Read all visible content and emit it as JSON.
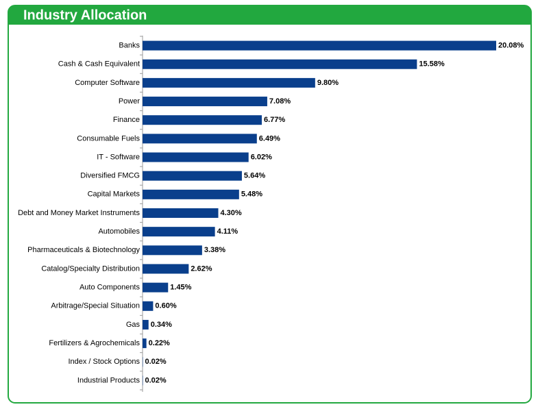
{
  "chart_data": {
    "type": "bar",
    "orientation": "horizontal",
    "title": "Industry Allocation",
    "categories": [
      "Banks",
      "Cash & Cash Equivalent",
      "Computer Software",
      "Power",
      "Finance",
      "Consumable Fuels",
      "IT - Software",
      "Diversified FMCG",
      "Capital Markets",
      "Debt and Money Market Instruments",
      "Automobiles",
      "Pharmaceuticals & Biotechnology",
      "Catalog/Specialty Distribution",
      "Auto Components",
      "Arbitrage/Special Situation",
      "Gas",
      "Fertilizers & Agrochemicals",
      "Index / Stock Options",
      "Industrial Products"
    ],
    "values": [
      20.08,
      15.58,
      9.8,
      7.08,
      6.77,
      6.49,
      6.02,
      5.64,
      5.48,
      4.3,
      4.11,
      3.38,
      2.62,
      1.45,
      0.6,
      0.34,
      0.22,
      0.02,
      0.02
    ],
    "value_labels": [
      "20.08%",
      "15.58%",
      "9.80%",
      "7.08%",
      "6.77%",
      "6.49%",
      "6.02%",
      "5.64%",
      "5.48%",
      "4.30%",
      "4.11%",
      "3.38%",
      "2.62%",
      "1.45%",
      "0.60%",
      "0.34%",
      "0.22%",
      "0.02%",
      "0.02%"
    ],
    "color": "#0a3f8c",
    "header_color": "#22a83f"
  }
}
